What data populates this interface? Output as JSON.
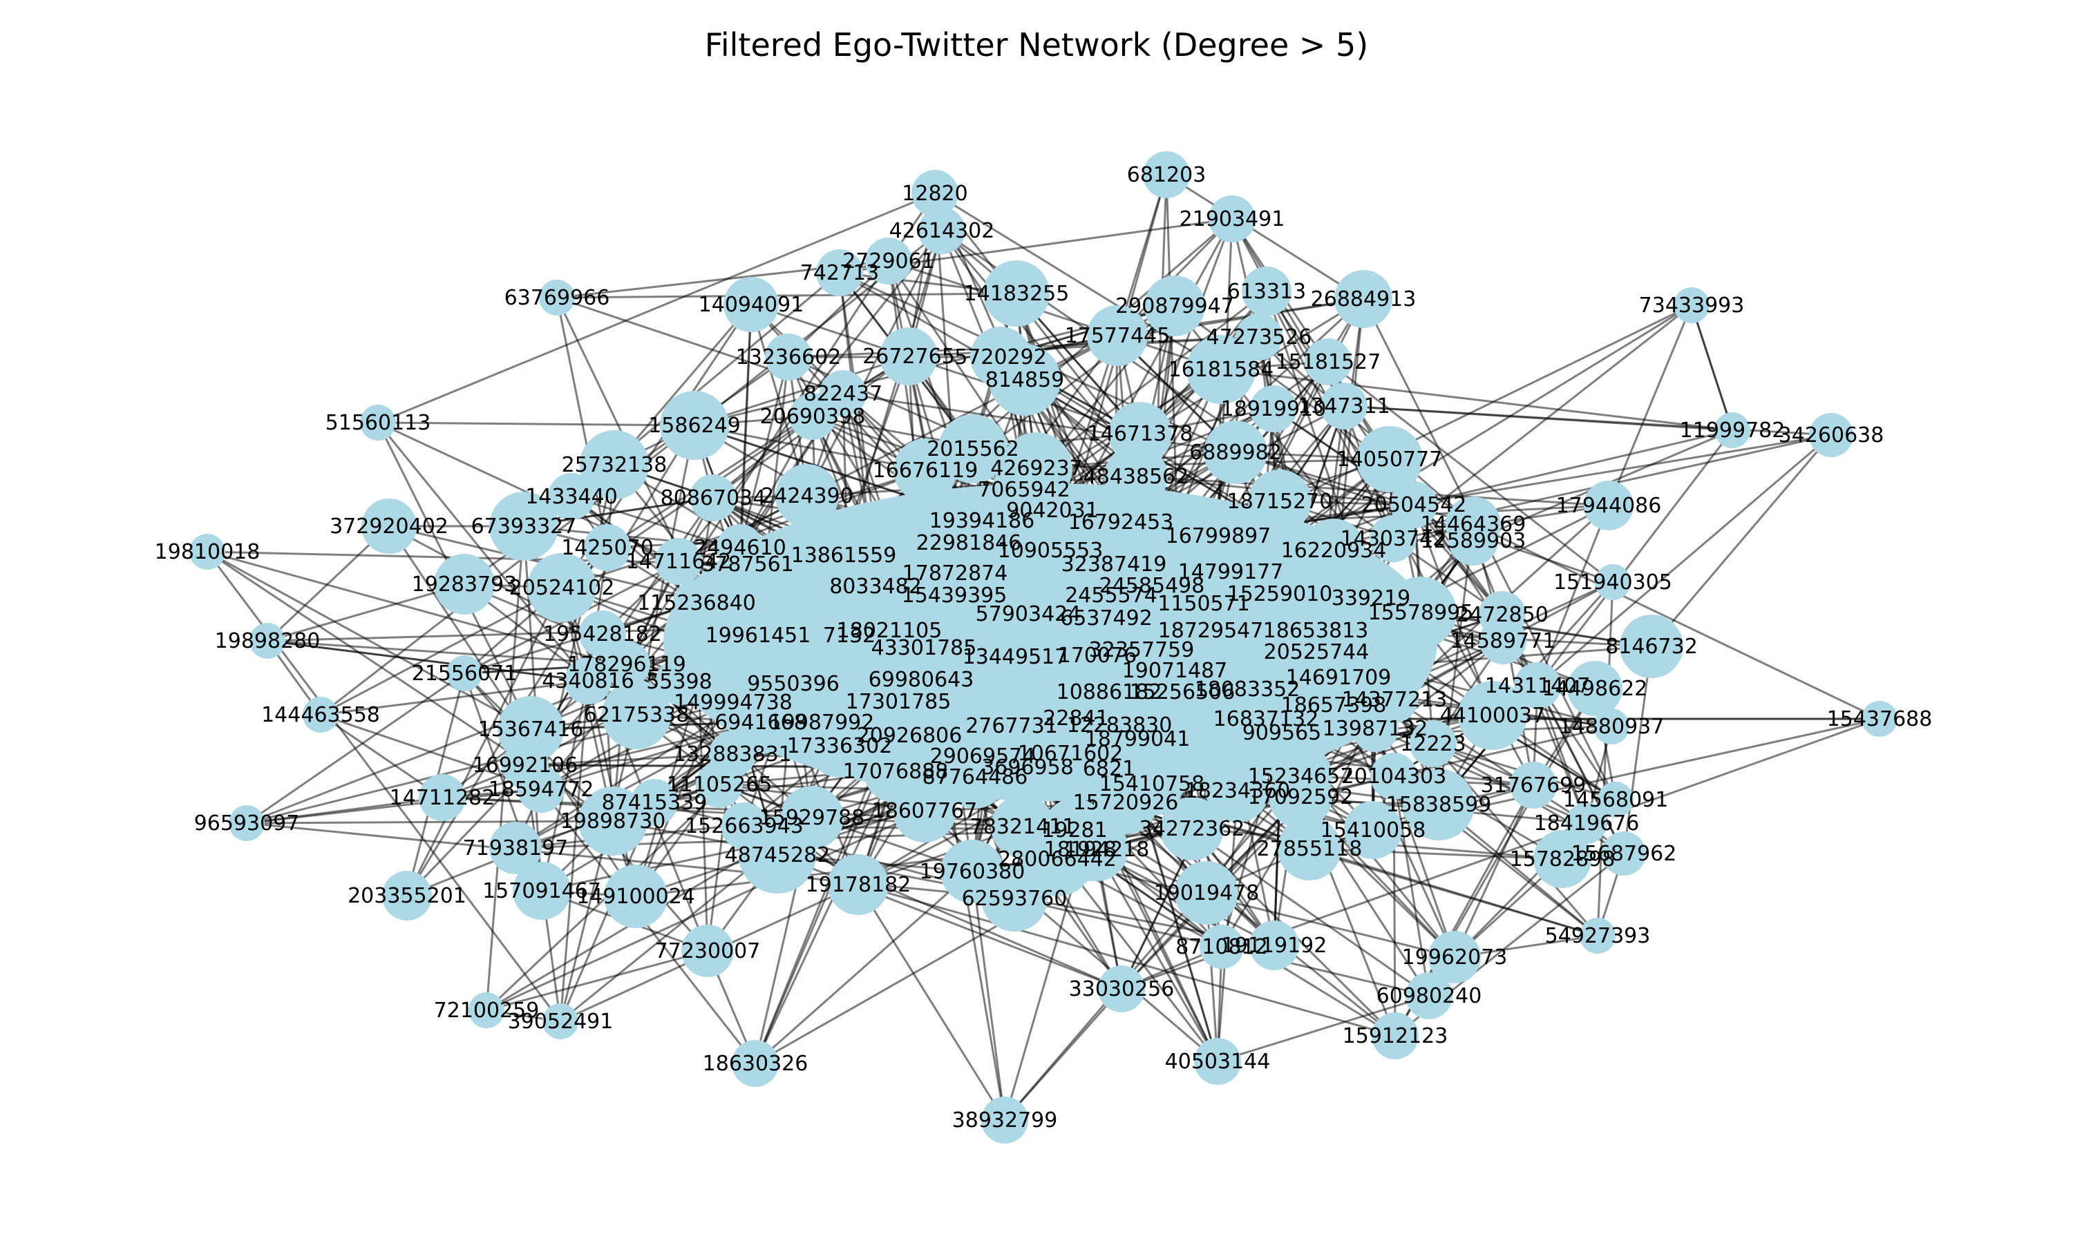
{
  "title": "Filtered Ego-Twitter Network (Degree > 5)",
  "colors": {
    "node": "#add8e6",
    "edge": "#000000",
    "label": "#000000",
    "background": "#ffffff"
  },
  "chart_data": {
    "type": "network",
    "title": "Filtered Ego-Twitter Network (Degree > 5)",
    "node_color": "#add8e6",
    "edge_color": "#000000",
    "nodes": [
      "12820",
      "681203",
      "21903491",
      "42614302",
      "2729061",
      "742713",
      "14183255",
      "613313",
      "26884913",
      "290879947",
      "73433993",
      "63769966",
      "14094091",
      "47273526",
      "17577445",
      "13236602",
      "2672765",
      "5720292",
      "16181584",
      "15181527",
      "814859",
      "822437",
      "1586249",
      "20690398",
      "1347311",
      "11999782",
      "34260638",
      "51560113",
      "25732138",
      "14671378",
      "6889982",
      "2015562",
      "4269237",
      "48438562",
      "18919910",
      "14050777",
      "16676119",
      "1433440",
      "80867034",
      "2424390",
      "7065942",
      "18715270",
      "20504542",
      "9042031",
      "16792453",
      "14464369",
      "17944086",
      "372920402",
      "67393327",
      "19394186",
      "16799897",
      "14303742",
      "12589903",
      "19810018",
      "1425070",
      "2494610",
      "22981846",
      "10905553",
      "16220934",
      "151940305",
      "19283793",
      "20524102",
      "14711642",
      "3787561",
      "13861559",
      "32387419",
      "14799177",
      "17872874",
      "24585498",
      "8033482",
      "15439395",
      "115236840",
      "2455574",
      "1150571",
      "15259010",
      "339219",
      "8146732",
      "19898280",
      "195428182",
      "19961451",
      "7132",
      "57903424",
      "6537492",
      "18729547",
      "18653813",
      "15578995",
      "2472850",
      "18021105",
      "43301785",
      "13449517",
      "170076",
      "32357759",
      "20525744",
      "14589771",
      "21556071",
      "178296119",
      "19071487",
      "10886182",
      "15256506",
      "14691709",
      "14311407",
      "14498622",
      "144463558",
      "4340816",
      "55398",
      "9550396",
      "69980643",
      "18083352",
      "18657398",
      "14377213",
      "15437688",
      "149994738",
      "17301785",
      "6941668",
      "19987992",
      "2767731",
      "22841",
      "12283830",
      "13987132",
      "44100037",
      "14880937",
      "15367416",
      "62175338",
      "20926806",
      "16837132",
      "909565",
      "12223",
      "16992106",
      "132883831",
      "17336302",
      "29069574",
      "10671602",
      "3696958",
      "18799041",
      "6821",
      "14568091",
      "96593097",
      "14711282",
      "18594772",
      "87415339",
      "17076888",
      "87764486",
      "15234657",
      "20104303",
      "31767699",
      "15410758",
      "18234360",
      "17092592",
      "19898730",
      "11105265",
      "152663943",
      "15929788",
      "18607767",
      "15720926",
      "15838599",
      "18419676",
      "71938197",
      "48745282",
      "78321411",
      "19281",
      "1928",
      "34272362",
      "27855118",
      "15410058",
      "15782898",
      "15687962",
      "203355201",
      "157091467",
      "149100024",
      "19178182",
      "19760380",
      "280066442",
      "18194218",
      "19019478",
      "54927393",
      "62593760",
      "8710812",
      "19119192",
      "19962073",
      "77230007",
      "60980240",
      "72100259",
      "39052491",
      "33030256",
      "15912123",
      "18630326",
      "40503144",
      "38932799"
    ]
  }
}
